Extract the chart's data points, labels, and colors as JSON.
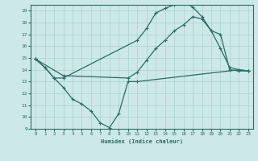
{
  "xlabel": "Humidex (Indice chaleur)",
  "xlim": [
    -0.5,
    23.5
  ],
  "ylim": [
    9,
    19.5
  ],
  "yticks": [
    9,
    10,
    11,
    12,
    13,
    14,
    15,
    16,
    17,
    18,
    19
  ],
  "xticks": [
    0,
    1,
    2,
    3,
    4,
    5,
    6,
    7,
    8,
    9,
    10,
    11,
    12,
    13,
    14,
    15,
    16,
    17,
    18,
    19,
    20,
    21,
    22,
    23
  ],
  "bg_color": "#cde8e8",
  "grid_color": "#b0d4d4",
  "line_color": "#2a6b65",
  "lines": [
    {
      "x": [
        0,
        1,
        2,
        3,
        4,
        5,
        6,
        7,
        8,
        9,
        10,
        11,
        22,
        23
      ],
      "y": [
        14.9,
        14.2,
        13.3,
        12.5,
        11.5,
        11.1,
        10.5,
        9.5,
        9.1,
        10.3,
        13.0,
        13.0,
        14.0,
        13.9
      ]
    },
    {
      "x": [
        0,
        1,
        2,
        3,
        11,
        12,
        13,
        14,
        15,
        16,
        17,
        18,
        19,
        20,
        21,
        22,
        23
      ],
      "y": [
        14.9,
        14.2,
        13.3,
        13.3,
        16.5,
        17.5,
        18.8,
        19.2,
        19.5,
        19.8,
        19.3,
        18.5,
        17.3,
        15.8,
        14.2,
        14.0,
        13.9
      ]
    },
    {
      "x": [
        0,
        3,
        10,
        11,
        12,
        13,
        14,
        15,
        16,
        17,
        18,
        19,
        20,
        21,
        22,
        23
      ],
      "y": [
        14.9,
        13.5,
        13.3,
        13.8,
        14.8,
        15.8,
        16.5,
        17.3,
        17.8,
        18.5,
        18.3,
        17.3,
        17.0,
        14.0,
        13.9,
        13.9
      ]
    }
  ]
}
